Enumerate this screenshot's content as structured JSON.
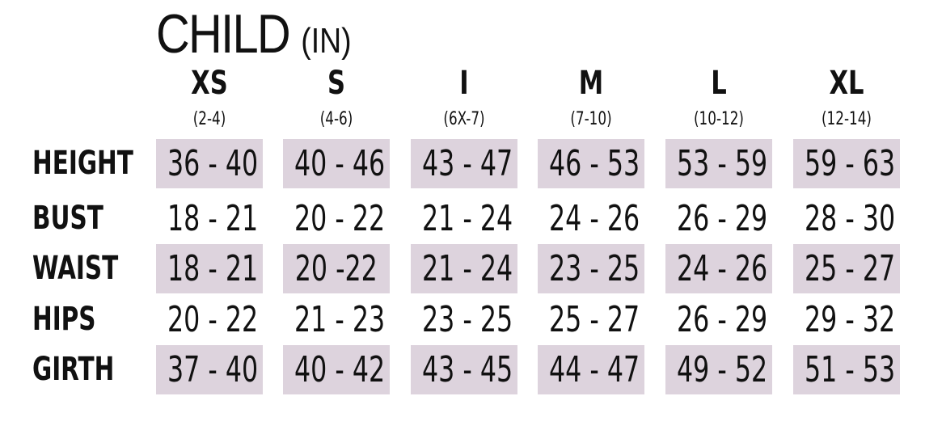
{
  "title": "CHILD",
  "unit": "(IN)",
  "colors": {
    "shade": "#ddd3dd"
  },
  "sizes": [
    {
      "size": "XS",
      "range": "(2-4)"
    },
    {
      "size": "S",
      "range": "(4-6)"
    },
    {
      "size": "I",
      "range": "(6X-7)"
    },
    {
      "size": "M",
      "range": "(7-10)"
    },
    {
      "size": "L",
      "range": "(10-12)"
    },
    {
      "size": "XL",
      "range": "(12-14)"
    }
  ],
  "rows": [
    {
      "label": "HEIGHT",
      "shaded": true,
      "values": [
        "36 - 40",
        "40 - 46",
        "43 - 47",
        "46 - 53",
        "53 - 59",
        "59 - 63"
      ]
    },
    {
      "label": "BUST",
      "shaded": false,
      "values": [
        "18 - 21",
        "20 - 22",
        "21 - 24",
        "24 - 26",
        "26 - 29",
        "28 - 30"
      ]
    },
    {
      "label": "WAIST",
      "shaded": true,
      "values": [
        "18 - 21",
        "20 -22",
        "21 - 24",
        "23 - 25",
        "24 - 26",
        "25 - 27"
      ]
    },
    {
      "label": "HIPS",
      "shaded": false,
      "values": [
        "20 - 22",
        "21 - 23",
        "23 - 25",
        "25 - 27",
        "26 - 29",
        "29 - 32"
      ]
    },
    {
      "label": "GIRTH",
      "shaded": true,
      "values": [
        "37 - 40",
        "40 - 42",
        "43 - 45",
        "44 - 47",
        "49 - 52",
        "51 - 53"
      ]
    }
  ]
}
